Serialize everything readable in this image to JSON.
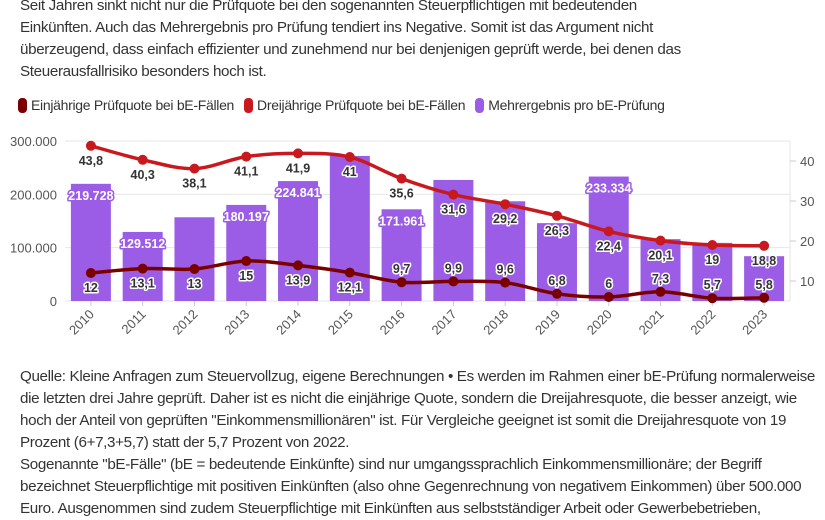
{
  "intro_lines": [
    "Seit Jahren sinkt nicht nur die Prüfquote bei den sogenannten Steuerpflichtigen mit bedeutenden",
    "Einkünften. Auch das Mehrergebnis pro Prüfung tendiert ins Negative. Somit ist das Argument nicht",
    "überzeugend, dass einfach effizienter und zunehmend nur bei denjenigen geprüft werde, bei denen das",
    "Steuerausfallrisiko besonders hoch ist."
  ],
  "notes_lines": [
    "Quelle: Kleine Anfragen zum Steuervollzug, eigene Berechnungen • Es werden im Rahmen einer bE-Prüfung normalerweise",
    "die letzten drei Jahre geprüft. Daher ist es nicht die einjährige Quote, sondern die Dreijahresquote, die besser anzeigt, wie",
    "hoch der Anteil von geprüften \"Einkommensmillionären\" ist. Für Vergleiche geeignet ist somit die Dreijahresquote von 19",
    "Prozent (6+7,3+5,7) statt der 5,7 Prozent von 2022.",
    "Sogenannte \"bE-Fälle\" (bE = bedeutende Einkünfte) sind nur umgangssprachlich Einkommensmillionäre; der Begriff",
    "bezeichnet Steuerpflichtige mit positiven Einkünften (also ohne Gegenrechnung von negativem Einkommen) über 500.000",
    "Euro. Ausgenommen sind zudem Steuerpflichtige mit Einkünften aus selbstständiger Arbeit oder Gewerbebetrieben,"
  ],
  "chart_data": {
    "type": "bar+line",
    "categories": [
      "2010",
      "2011",
      "2012",
      "2013",
      "2014",
      "2015",
      "2016",
      "2017",
      "2018",
      "2019",
      "2020",
      "2021",
      "2022",
      "2023"
    ],
    "legend_position": "top-left",
    "grid": true,
    "left_axis": {
      "ylim": [
        0,
        300000
      ],
      "ticks": [
        "0",
        "100.000",
        "200.000",
        "300.000"
      ],
      "tick_values": [
        0,
        100000,
        200000,
        300000
      ]
    },
    "right_axis": {
      "ylim": [
        5,
        45
      ],
      "ticks": [
        "10",
        "20",
        "30",
        "40"
      ],
      "tick_values": [
        10,
        20,
        30,
        40
      ]
    },
    "series": [
      {
        "name": "Einjährige Prüfquote bei bE-Fällen",
        "type": "line",
        "axis": "right",
        "color": "#7a0000",
        "values": [
          12,
          13.1,
          13,
          15,
          13.9,
          12.1,
          9.7,
          9.9,
          9.6,
          6.8,
          6,
          7.3,
          5.7,
          5.8
        ],
        "labels": [
          "12",
          "13,1",
          "13",
          "15",
          "13,9",
          "12,1",
          "9,7",
          "9,9",
          "9,6",
          "6,8",
          "6",
          "7,3",
          "5,7",
          "5,8"
        ]
      },
      {
        "name": "Dreijährige Prüfquote bei bE-Fällen",
        "type": "line",
        "axis": "right",
        "color": "#c8191e",
        "values": [
          43.8,
          40.3,
          38.1,
          41.1,
          41.9,
          41,
          35.6,
          31.6,
          29.2,
          26.3,
          22.4,
          20.1,
          19,
          18.8
        ],
        "labels": [
          "43,8",
          "40,3",
          "38,1",
          "41,1",
          "41,9",
          "41",
          "35,6",
          "31,6",
          "29,2",
          "26,3",
          "22,4",
          "20,1",
          "19",
          "18,8"
        ]
      },
      {
        "name": "Mehrergebnis pro bE-Prüfung",
        "type": "bar",
        "axis": "left",
        "color": "#9b5de5",
        "values": [
          219728,
          129512,
          157000,
          180197,
          224841,
          272000,
          171961,
          227000,
          187000,
          146000,
          233334,
          116000,
          109000,
          84000
        ],
        "labels": [
          "219.728",
          "129.512",
          "",
          "180.197",
          "224.841",
          "",
          "171.961",
          "",
          "",
          "",
          "233.334",
          "",
          "",
          ""
        ]
      }
    ]
  }
}
